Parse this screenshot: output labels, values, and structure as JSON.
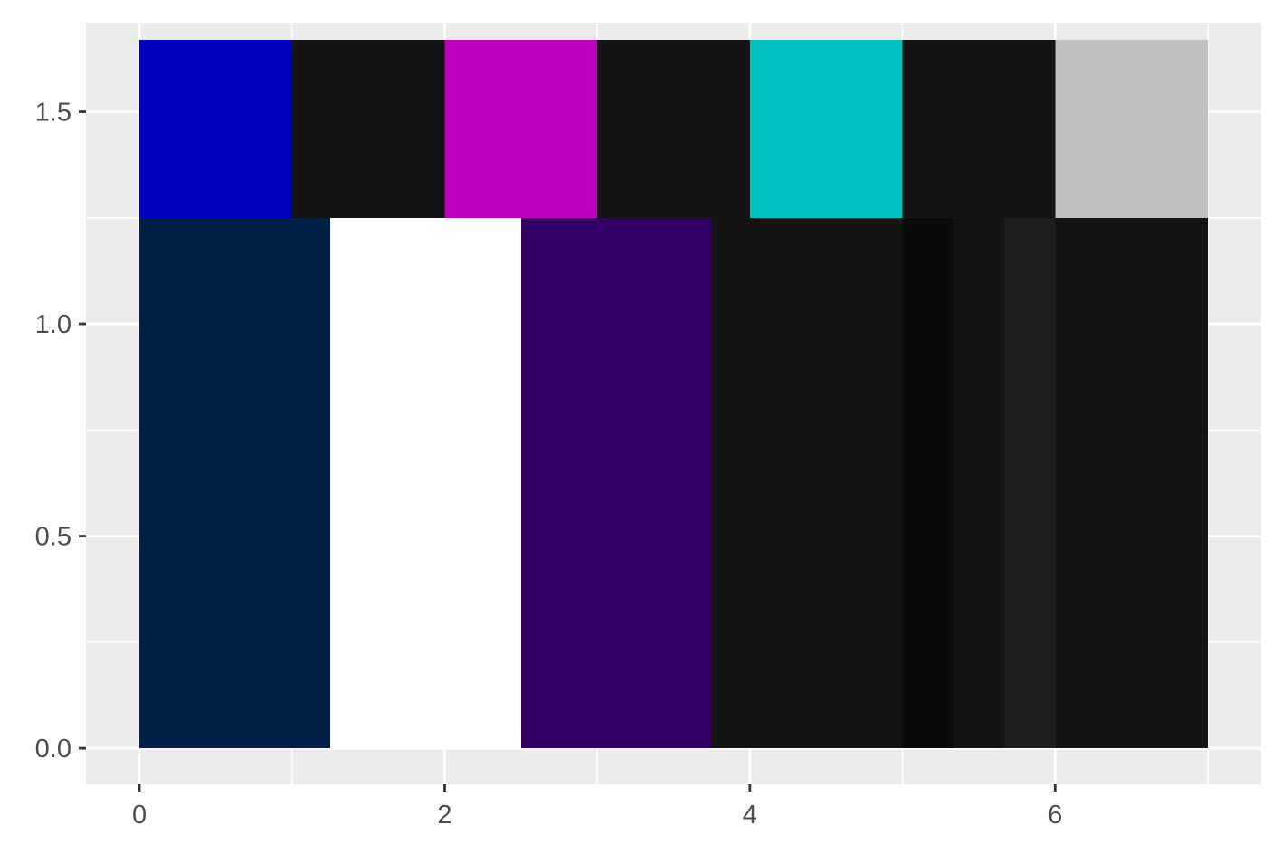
{
  "chart_data": {
    "type": "rect",
    "title": "",
    "xlabel": "",
    "ylabel": "",
    "xlim": [
      -0.35,
      7.35
    ],
    "ylim": [
      -0.085,
      1.71
    ],
    "x_ticks": [
      {
        "value": 0,
        "label": "0"
      },
      {
        "value": 2,
        "label": "2"
      },
      {
        "value": 4,
        "label": "4"
      },
      {
        "value": 6,
        "label": "6"
      }
    ],
    "x_minor_gridlines": [
      1,
      3,
      5,
      7
    ],
    "y_ticks": [
      {
        "value": 0.0,
        "label": "0.0"
      },
      {
        "value": 0.5,
        "label": "0.5"
      },
      {
        "value": 1.0,
        "label": "1.0"
      },
      {
        "value": 1.5,
        "label": "1.5"
      }
    ],
    "y_minor_gridlines": [
      0.25,
      0.75,
      1.25
    ],
    "panel_background": "#ebebeb",
    "grid_color": "#ffffff",
    "rects": [
      {
        "name": "top-1",
        "xmin": 0,
        "xmax": 1,
        "ymin": 1.25,
        "ymax": 1.67,
        "fill": "#0000c0"
      },
      {
        "name": "top-2",
        "xmin": 1,
        "xmax": 2,
        "ymin": 1.25,
        "ymax": 1.67,
        "fill": "#141414"
      },
      {
        "name": "top-3",
        "xmin": 2,
        "xmax": 3,
        "ymin": 1.25,
        "ymax": 1.67,
        "fill": "#c000c0"
      },
      {
        "name": "top-4",
        "xmin": 3,
        "xmax": 4,
        "ymin": 1.25,
        "ymax": 1.67,
        "fill": "#141414"
      },
      {
        "name": "top-5",
        "xmin": 4,
        "xmax": 5,
        "ymin": 1.25,
        "ymax": 1.67,
        "fill": "#00c0c0"
      },
      {
        "name": "top-6",
        "xmin": 5,
        "xmax": 6,
        "ymin": 1.25,
        "ymax": 1.67,
        "fill": "#141414"
      },
      {
        "name": "top-7",
        "xmin": 6,
        "xmax": 7,
        "ymin": 1.25,
        "ymax": 1.67,
        "fill": "#c0c0c0"
      },
      {
        "name": "bottom-1",
        "xmin": 0,
        "xmax": 1.25,
        "ymin": 0,
        "ymax": 1.25,
        "fill": "#002048"
      },
      {
        "name": "bottom-2",
        "xmin": 1.25,
        "xmax": 2.5,
        "ymin": 0,
        "ymax": 1.25,
        "fill": "#ffffff"
      },
      {
        "name": "bottom-3",
        "xmin": 2.5,
        "xmax": 3.75,
        "ymin": 0,
        "ymax": 1.25,
        "fill": "#320064"
      },
      {
        "name": "bottom-4",
        "xmin": 3.75,
        "xmax": 5,
        "ymin": 0,
        "ymax": 1.25,
        "fill": "#141414"
      },
      {
        "name": "bottom-5",
        "xmin": 5,
        "xmax": 5.333,
        "ymin": 0,
        "ymax": 1.25,
        "fill": "#0a0a0a"
      },
      {
        "name": "bottom-6",
        "xmin": 5.333,
        "xmax": 5.667,
        "ymin": 0,
        "ymax": 1.25,
        "fill": "#141414"
      },
      {
        "name": "bottom-7",
        "xmin": 5.667,
        "xmax": 6,
        "ymin": 0,
        "ymax": 1.25,
        "fill": "#1e1e1e"
      },
      {
        "name": "bottom-8",
        "xmin": 6,
        "xmax": 7,
        "ymin": 0,
        "ymax": 1.25,
        "fill": "#141414"
      }
    ]
  }
}
